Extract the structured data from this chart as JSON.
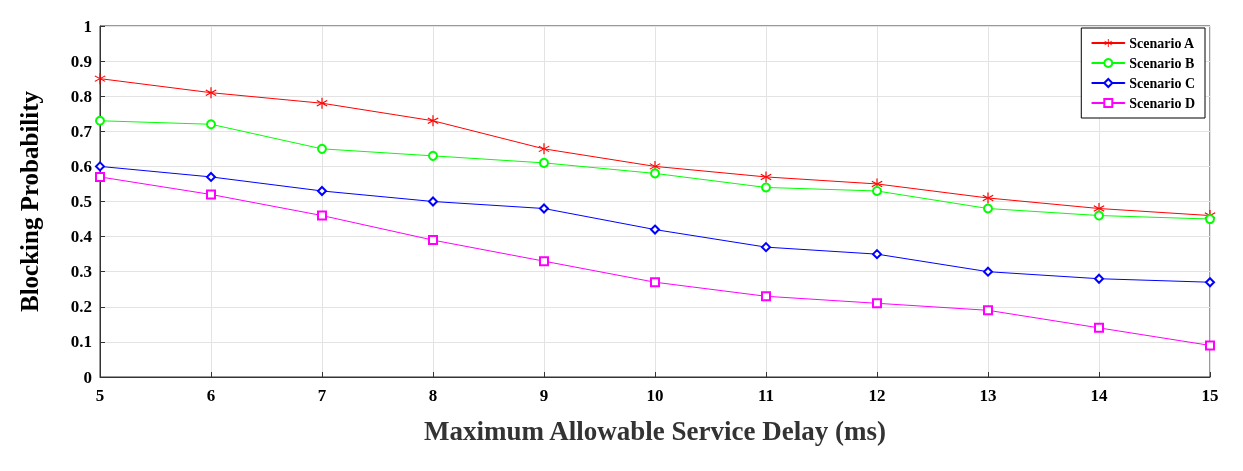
{
  "chart_data": {
    "type": "line",
    "xlabel": "Maximum Allowable Service Delay (ms)",
    "ylabel": "Blocking Probability",
    "x": [
      5,
      6,
      7,
      8,
      9,
      10,
      11,
      12,
      13,
      14,
      15
    ],
    "xlim": [
      5,
      15
    ],
    "xticks": [
      5,
      6,
      7,
      8,
      9,
      10,
      11,
      12,
      13,
      14,
      15
    ],
    "ylim": [
      0,
      1
    ],
    "yticks": [
      0,
      0.1,
      0.2,
      0.3,
      0.4,
      0.5,
      0.6,
      0.7,
      0.8,
      0.9,
      1
    ],
    "grid": true,
    "legend": "top right",
    "line_style": "solid",
    "series": [
      {
        "name": "Scenario A",
        "color": "#ff0000",
        "marker": "cross",
        "values": [
          0.85,
          0.81,
          0.78,
          0.73,
          0.65,
          0.6,
          0.57,
          0.55,
          0.51,
          0.48,
          0.46
        ]
      },
      {
        "name": "Scenario B",
        "color": "#00ff00",
        "marker": "circle",
        "values": [
          0.73,
          0.72,
          0.65,
          0.63,
          0.61,
          0.58,
          0.54,
          0.53,
          0.48,
          0.46,
          0.45
        ]
      },
      {
        "name": "Scenario C",
        "color": "#0000ff",
        "marker": "diamond",
        "values": [
          0.6,
          0.57,
          0.53,
          0.5,
          0.48,
          0.42,
          0.37,
          0.35,
          0.3,
          0.28,
          0.27
        ]
      },
      {
        "name": "Scenario D",
        "color": "#ff00ff",
        "marker": "square",
        "values": [
          0.57,
          0.52,
          0.46,
          0.39,
          0.33,
          0.27,
          0.23,
          0.21,
          0.19,
          0.14,
          0.09
        ]
      }
    ]
  }
}
